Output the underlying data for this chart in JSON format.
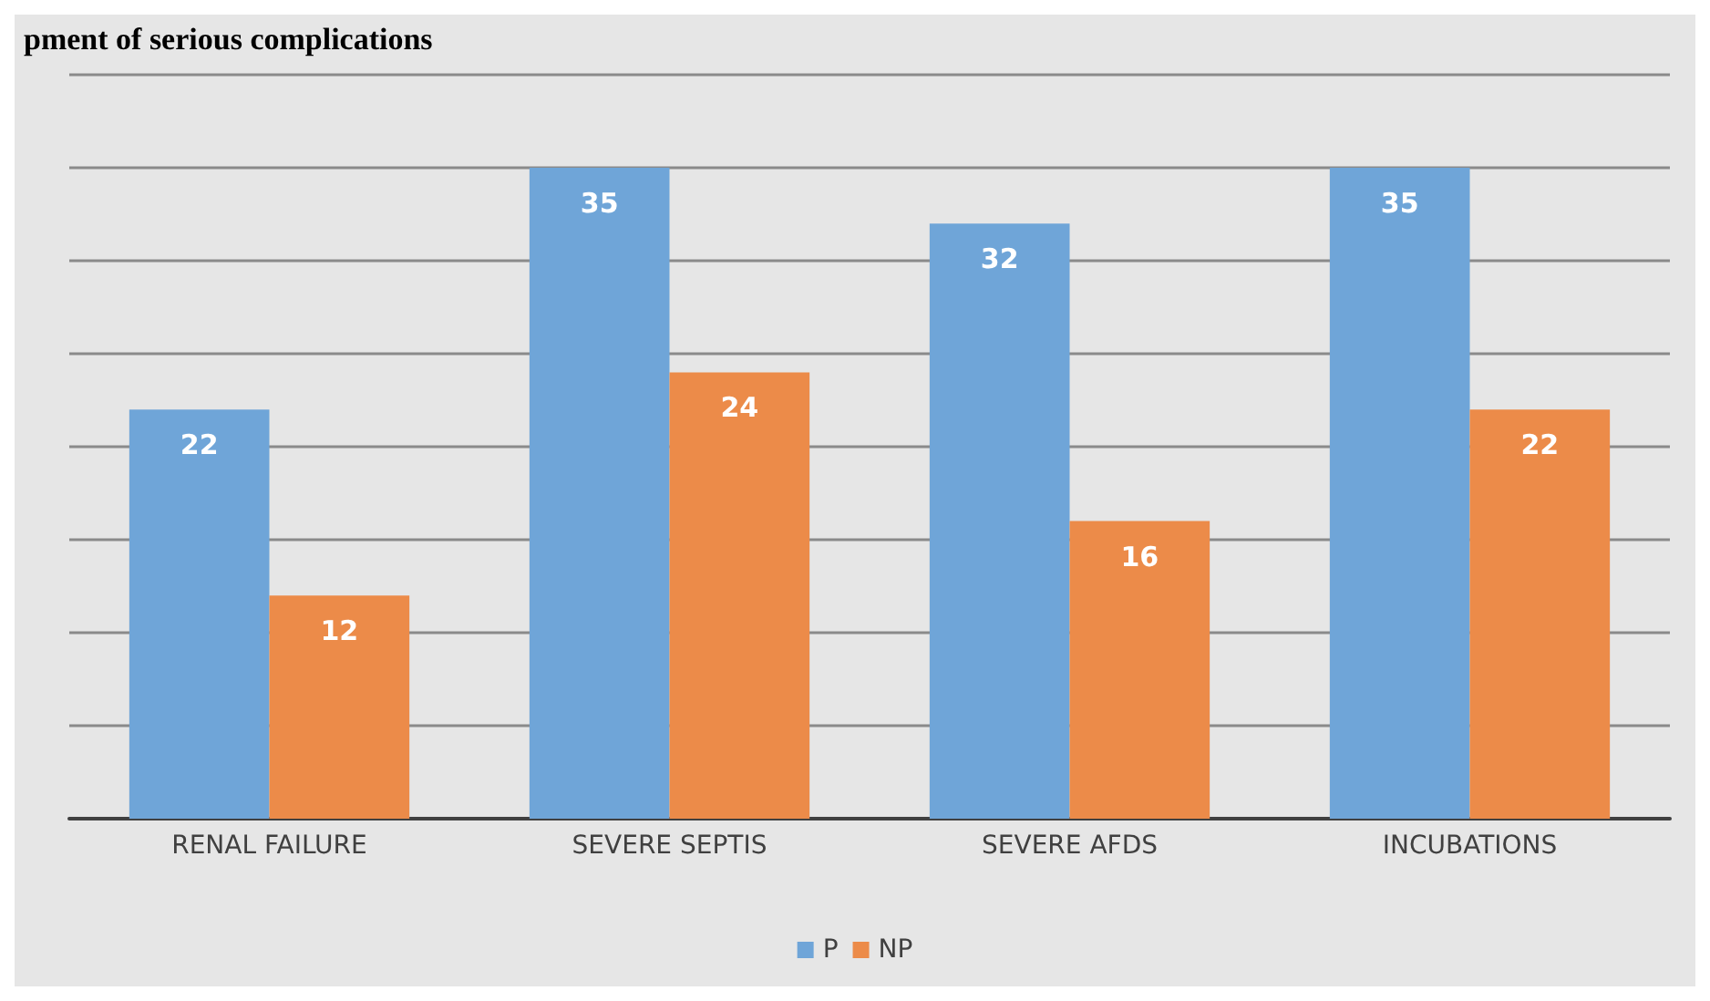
{
  "chart_data": {
    "type": "bar",
    "title": "pment of serious complications",
    "categories": [
      "RENAL FAILURE",
      "SEVERE SEPTIS",
      "SEVERE AFDS",
      "INCUBATIONS"
    ],
    "series": [
      {
        "name": "P",
        "color": "#6fa5d8",
        "values": [
          22,
          35,
          32,
          35
        ]
      },
      {
        "name": "NP",
        "color": "#ec8b49",
        "values": [
          12,
          24,
          16,
          22
        ]
      }
    ],
    "ylim": [
      0,
      40
    ],
    "yticks": [
      {
        "value": 0,
        "label": null
      },
      {
        "value": 5,
        "label": null
      },
      {
        "value": 10,
        "label": null
      },
      {
        "value": 15,
        "label": null
      },
      {
        "value": 20,
        "label": null
      },
      {
        "value": 25,
        "label": null
      },
      {
        "value": 30,
        "label": null
      },
      {
        "value": 35,
        "label": null
      },
      {
        "value": 40,
        "label": null
      }
    ],
    "tick_labels": "x",
    "grid": "y",
    "data_labels": true,
    "legend": "bottom"
  }
}
